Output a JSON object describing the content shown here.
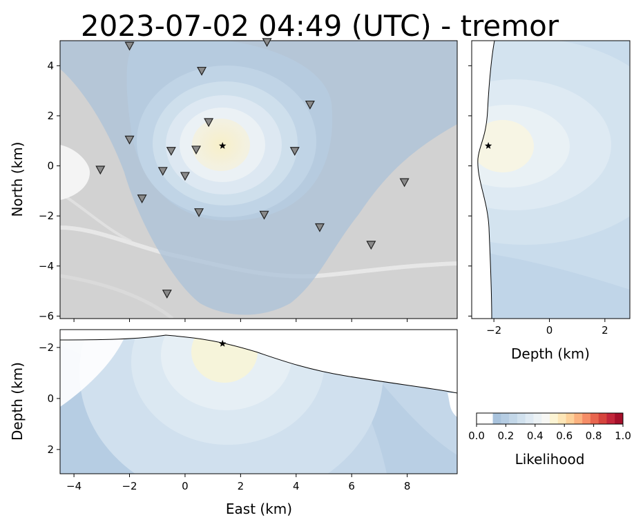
{
  "title": "2023-07-02 04:49 (UTC) - tremor",
  "chart_data": [
    {
      "name": "map",
      "type": "scatter",
      "xlabel": "",
      "ylabel": "North (km)",
      "xlim": [
        -4.5,
        9.8
      ],
      "ylim": [
        -6.1,
        5.0
      ],
      "x_ticks": [
        "−4",
        "−2",
        "0",
        "2",
        "4",
        "6",
        "8"
      ],
      "x_tick_values": [
        -4,
        -2,
        0,
        2,
        4,
        6,
        8
      ],
      "y_ticks": [
        "−6",
        "−4",
        "−2",
        "0",
        "2",
        "4"
      ],
      "y_tick_values": [
        -6,
        -4,
        -2,
        0,
        2,
        4
      ],
      "source": {
        "x": 1.35,
        "y": 0.8
      },
      "stations": [
        {
          "x": -2.0,
          "y": 4.8
        },
        {
          "x": 2.95,
          "y": 4.95
        },
        {
          "x": 0.6,
          "y": 3.8
        },
        {
          "x": 4.5,
          "y": 2.45
        },
        {
          "x": 0.85,
          "y": 1.75
        },
        {
          "x": -2.0,
          "y": 1.05
        },
        {
          "x": -0.5,
          "y": 0.6
        },
        {
          "x": 0.4,
          "y": 0.65
        },
        {
          "x": 3.95,
          "y": 0.6
        },
        {
          "x": -3.05,
          "y": -0.15
        },
        {
          "x": -0.8,
          "y": -0.2
        },
        {
          "x": 0.0,
          "y": -0.4
        },
        {
          "x": 7.9,
          "y": -0.65
        },
        {
          "x": -1.55,
          "y": -1.3
        },
        {
          "x": 0.5,
          "y": -1.85
        },
        {
          "x": 2.85,
          "y": -1.95
        },
        {
          "x": 4.85,
          "y": -2.45
        },
        {
          "x": 6.7,
          "y": -3.15
        },
        {
          "x": -0.65,
          "y": -5.1
        }
      ]
    },
    {
      "name": "north-depth",
      "type": "area",
      "xlabel": "Depth (km)",
      "ylabel": "",
      "xlim": [
        -2.8,
        2.9
      ],
      "ylim": [
        -6.1,
        5.0
      ],
      "x_ticks": [
        "−2",
        "0",
        "2"
      ],
      "x_tick_values": [
        -2,
        0,
        2
      ],
      "source": {
        "depth": -2.2,
        "north": 0.8
      }
    },
    {
      "name": "east-depth",
      "type": "area",
      "xlabel": "East (km)",
      "ylabel": "Depth (km)",
      "xlim": [
        -4.5,
        9.8
      ],
      "ylim": [
        -2.7,
        2.95
      ],
      "x_ticks": [
        "−4",
        "−2",
        "0",
        "2",
        "4",
        "6",
        "8"
      ],
      "x_tick_values": [
        -4,
        -2,
        0,
        2,
        4,
        6,
        8
      ],
      "y_ticks": [
        "−2",
        "0",
        "2"
      ],
      "y_tick_values": [
        -2,
        0,
        2
      ],
      "source": {
        "east": 1.35,
        "depth": -2.15
      }
    },
    {
      "name": "colorbar",
      "type": "heatmap",
      "label": "Likelihood",
      "range": [
        0.0,
        1.0
      ],
      "ticks": [
        "0.0",
        "0.2",
        "0.4",
        "0.6",
        "0.8",
        "1.0"
      ],
      "tick_values": [
        0.0,
        0.2,
        0.4,
        0.6,
        0.8,
        1.0
      ],
      "colors": [
        "#ffffff",
        "#ffffff",
        "#a9c3dd",
        "#b6cde3",
        "#c3d7e8",
        "#d1e1ee",
        "#dfeaf3",
        "#ecf2f5",
        "#f7f7f4",
        "#fcf4d4",
        "#fde6b7",
        "#fdd19a",
        "#fbb27f",
        "#f58d67",
        "#e8664f",
        "#d6443d",
        "#c2263a",
        "#a50f2a"
      ]
    }
  ]
}
